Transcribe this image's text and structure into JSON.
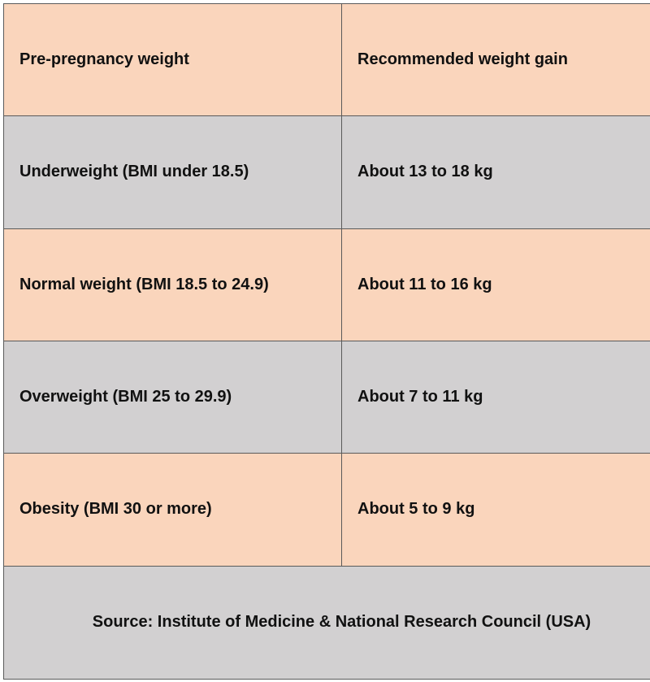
{
  "table": {
    "headers": [
      "Pre-pregnancy weight",
      "Recommended weight gain"
    ],
    "rows": [
      [
        "Underweight (BMI under 18.5)",
        "About 13 to 18 kg"
      ],
      [
        "Normal weight (BMI 18.5 to 24.9)",
        "About 11 to 16 kg"
      ],
      [
        "Overweight (BMI 25 to 29.9)",
        "About 7 to 11 kg"
      ],
      [
        "Obesity (BMI 30 or more)",
        "About 5 to 9 kg"
      ]
    ],
    "source": "Source: Institute of Medicine & National Research Council (USA)"
  },
  "colors": {
    "peach": "#fad5bc",
    "grey": "#d2d0d1",
    "border": "#5a5a5a",
    "text": "#111111"
  }
}
